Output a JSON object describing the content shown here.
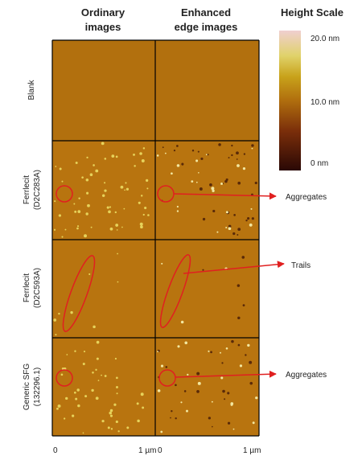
{
  "columns": [
    {
      "lines": [
        "Ordinary",
        "images"
      ]
    },
    {
      "lines": [
        "Enhanced",
        "edge images"
      ]
    }
  ],
  "rows": [
    {
      "lines": [
        "Blank"
      ]
    },
    {
      "lines": [
        "Ferrlecit",
        "(D2C283A)"
      ]
    },
    {
      "lines": [
        "Ferrlecit",
        "(D2C593A)"
      ]
    },
    {
      "lines": [
        "Generic SFG",
        "(132296.1)"
      ]
    }
  ],
  "height_scale": {
    "title": "Height Scale",
    "labels": [
      "20.0 nm",
      "10.0 nm",
      "0 nm"
    ]
  },
  "annotations": [
    "Aggregates",
    "Trails",
    "Aggregates"
  ],
  "x_axis": [
    "0",
    "1 µm",
    "0",
    "1 µm"
  ]
}
